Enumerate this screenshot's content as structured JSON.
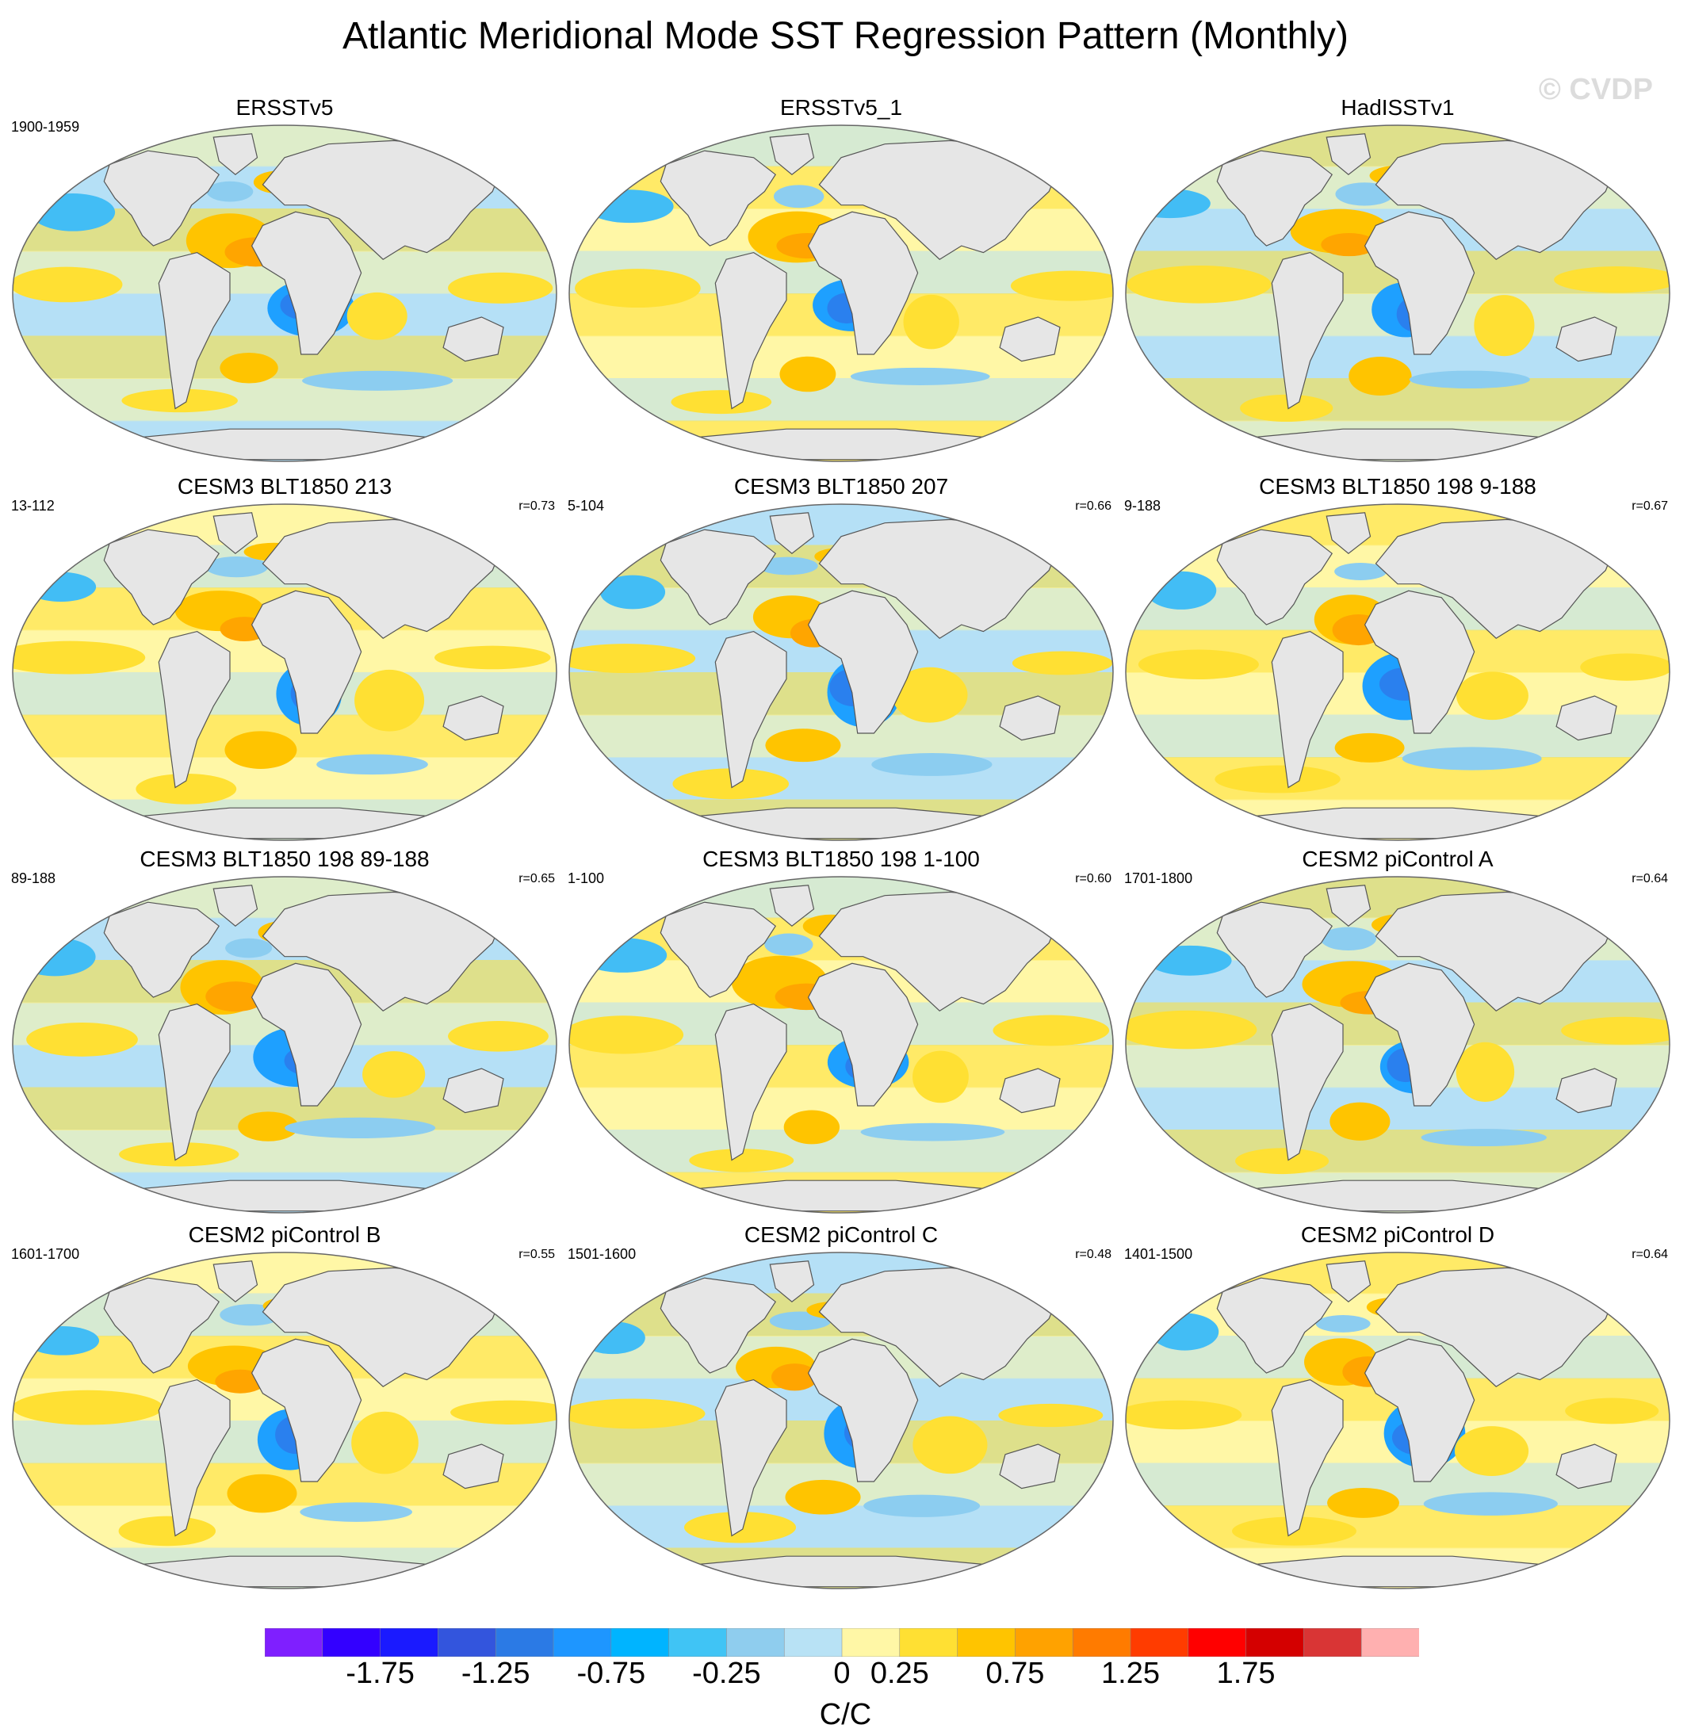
{
  "title": "Atlantic Meridional Mode SST Regression Pattern (Monthly)",
  "watermark": "© CVDP",
  "colors": {
    "land": "#e6e6e6",
    "coast": "#555555",
    "ocean_outline": "#666666",
    "warm_patterns": [
      "#fff7a6",
      "#ffe033",
      "#ffc400",
      "#ffa500"
    ],
    "cool_patterns": [
      "#b5e0f5",
      "#8ccdf0",
      "#42bdf5",
      "#1ea0ff",
      "#2a80ee"
    ]
  },
  "panels": [
    {
      "title": "ERSSTv5",
      "years": "1900-1959",
      "corr": ""
    },
    {
      "title": "ERSSTv5_1",
      "years": "",
      "corr": ""
    },
    {
      "title": "HadISSTv1",
      "years": "",
      "corr": ""
    },
    {
      "title": "CESM3 BLT1850 213",
      "years": "13-112",
      "corr": "r=0.73"
    },
    {
      "title": "CESM3 BLT1850 207",
      "years": "5-104",
      "corr": "r=0.66"
    },
    {
      "title": "CESM3 BLT1850 198 9-188",
      "years": "9-188",
      "corr": "r=0.67"
    },
    {
      "title": "CESM3 BLT1850 198 89-188",
      "years": "89-188",
      "corr": "r=0.65"
    },
    {
      "title": "CESM3 BLT1850 198 1-100",
      "years": "1-100",
      "corr": "r=0.60"
    },
    {
      "title": "CESM2 piControl A",
      "years": "1701-1800",
      "corr": "r=0.64"
    },
    {
      "title": "CESM2 piControl B",
      "years": "1601-1700",
      "corr": "r=0.55"
    },
    {
      "title": "CESM2 piControl C",
      "years": "1501-1600",
      "corr": "r=0.48"
    },
    {
      "title": "CESM2 piControl D",
      "years": "1401-1500",
      "corr": "r=0.64"
    }
  ],
  "colorbar": {
    "colors": [
      "#7f1fff",
      "#3300ff",
      "#1a1aff",
      "#3355dd",
      "#2b7ae5",
      "#1e96ff",
      "#00b4ff",
      "#40c4f5",
      "#8fcdee",
      "#b8e2f5",
      "#fff7a6",
      "#ffe033",
      "#ffc400",
      "#ffa200",
      "#ff7b00",
      "#ff3c00",
      "#ff0000",
      "#d40000",
      "#d93535",
      "#ffb0b0"
    ],
    "tick_labels": [
      "-1.75",
      "-1.25",
      "-0.75",
      "-0.25",
      "0",
      "0.25",
      "0.75",
      "1.25",
      "1.75"
    ],
    "tick_boundary_index": [
      2,
      4,
      6,
      8,
      10,
      11,
      13,
      15,
      17
    ],
    "units": "C/C"
  }
}
